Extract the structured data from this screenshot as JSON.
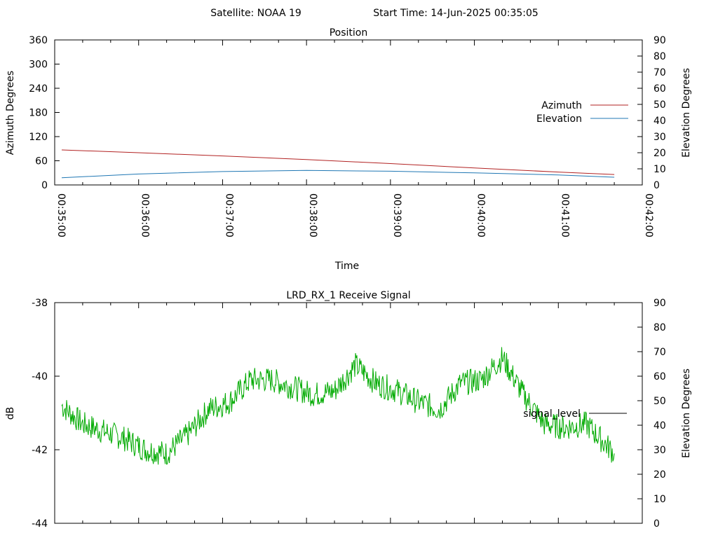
{
  "header": {
    "satellite": "Satellite: NOAA 19",
    "start_time": "Start Time: 14-Jun-2025 00:35:05"
  },
  "chart_data": [
    {
      "type": "line",
      "title": "Position",
      "xlabel": "Time",
      "ylabel": "Azimuth Degrees",
      "y2label": "Elevation Degrees",
      "xlim": [
        "00:35:00",
        "00:42:00"
      ],
      "x_ticks": [
        "00:35:00",
        "00:36:00",
        "00:37:00",
        "00:38:00",
        "00:39:00",
        "00:40:00",
        "00:41:00",
        "00:42:00"
      ],
      "ylim": [
        0,
        360
      ],
      "y_ticks": [
        "0",
        "60",
        "120",
        "180",
        "240",
        "300",
        "360"
      ],
      "y2lim": [
        0,
        90
      ],
      "y2_ticks": [
        "0",
        "10",
        "20",
        "30",
        "40",
        "50",
        "60",
        "70",
        "80",
        "90"
      ],
      "legend_position": "right",
      "x_time": [
        "00:35:05",
        "00:36:00",
        "00:37:00",
        "00:38:00",
        "00:39:00",
        "00:40:00",
        "00:41:00",
        "00:41:40"
      ],
      "series": [
        {
          "name": "Azimuth",
          "axis": "left",
          "color": "#b22222",
          "values": [
            87,
            80,
            72,
            63,
            53,
            42,
            32,
            26
          ]
        },
        {
          "name": "Elevation",
          "axis": "right",
          "color": "#1f77b4",
          "values": [
            4.5,
            6.8,
            8.3,
            9,
            8.5,
            7.5,
            6.2,
            4.8
          ]
        }
      ],
      "grid": false
    },
    {
      "type": "line",
      "title": "LRD_RX_1 Receive Signal",
      "xlabel": "",
      "ylabel": "dB",
      "y2label": "Elevation Degrees",
      "xlim": [
        "00:35:00",
        "00:42:00"
      ],
      "ylim": [
        -44,
        -38
      ],
      "y_ticks": [
        "-44",
        "-42",
        "-40",
        "-38"
      ],
      "y2lim": [
        0,
        90
      ],
      "y2_ticks": [
        "0",
        "10",
        "20",
        "30",
        "40",
        "50",
        "60",
        "70",
        "80",
        "90"
      ],
      "legend_position": "right",
      "x_time": [
        "00:35:05",
        "00:35:20",
        "00:35:35",
        "00:35:50",
        "00:36:05",
        "00:36:20",
        "00:36:35",
        "00:36:50",
        "00:37:05",
        "00:37:20",
        "00:37:35",
        "00:37:50",
        "00:38:05",
        "00:38:20",
        "00:38:35",
        "00:38:50",
        "00:39:05",
        "00:39:20",
        "00:39:35",
        "00:39:50",
        "00:40:05",
        "00:40:20",
        "00:40:35",
        "00:40:50",
        "00:41:05",
        "00:41:20",
        "00:41:40"
      ],
      "series": [
        {
          "name": "signal_level",
          "axis": "left",
          "color": "#00aa00",
          "values": [
            -40.8,
            -41.3,
            -41.5,
            -41.7,
            -42.0,
            -42.1,
            -41.6,
            -40.9,
            -40.7,
            -40.1,
            -40.1,
            -40.3,
            -40.5,
            -40.4,
            -39.7,
            -40.2,
            -40.4,
            -40.7,
            -40.9,
            -40.2,
            -40.1,
            -39.5,
            -40.5,
            -41.3,
            -41.4,
            -41.3,
            -42.1
          ]
        }
      ],
      "grid": false
    }
  ]
}
